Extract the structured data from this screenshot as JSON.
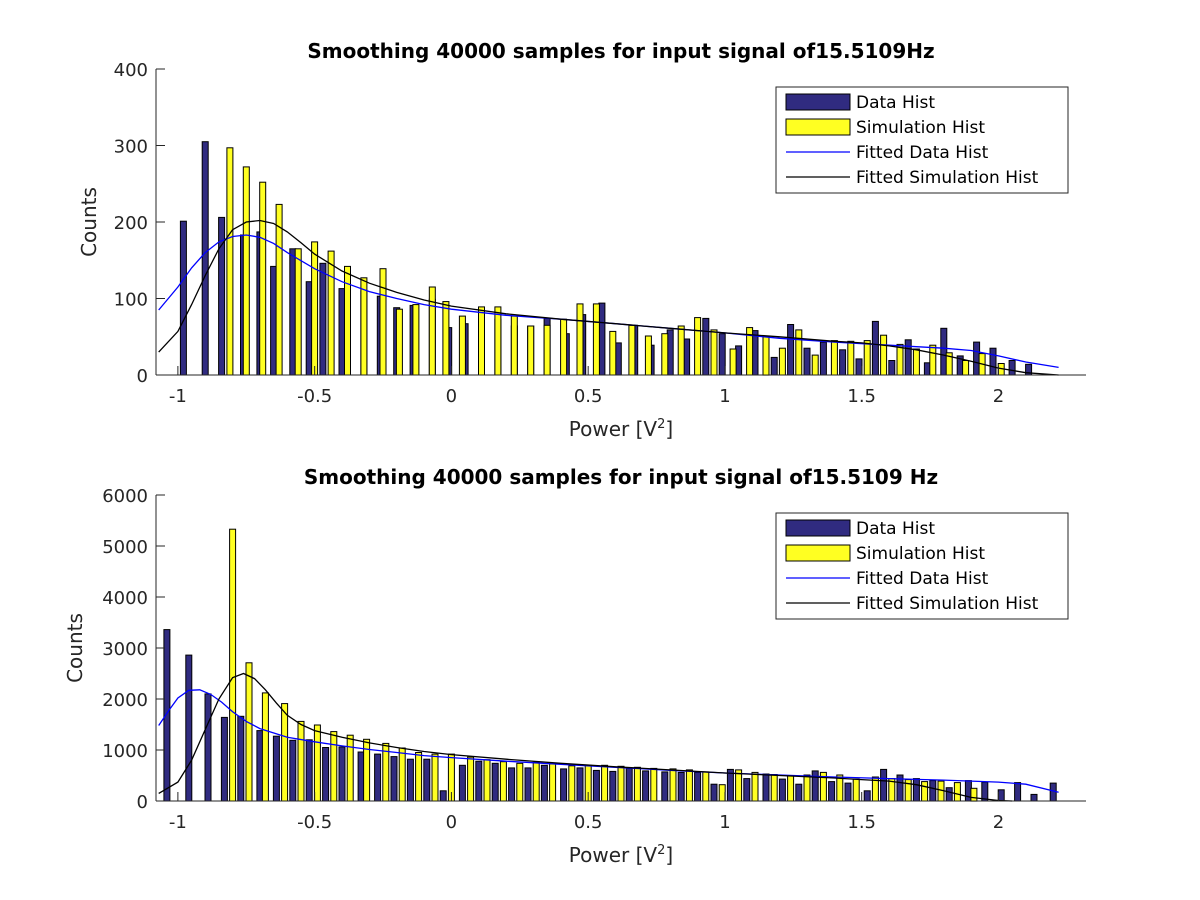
{
  "colors": {
    "data_bar": "#302b80",
    "sim_bar": "#ffff22",
    "bar_edge": "#000000",
    "fit_data": "#0000ff",
    "fit_sim": "#000000"
  },
  "chart_data": [
    {
      "type": "bar",
      "title": "Smoothing 40000 samples for input signal of15.5109Hz",
      "xlabel": "Power [V",
      "xlabel_sup": "2",
      "xlabel_end": "]",
      "ylabel": "Counts",
      "xlim": [
        -1.08,
        2.32
      ],
      "ylim": [
        0,
        400
      ],
      "xticks": [
        -1,
        -0.5,
        0,
        0.5,
        1,
        1.5,
        2
      ],
      "xtick_labels": [
        "-1",
        "-0.5",
        "0",
        "0.5",
        "1",
        "1.5",
        "2"
      ],
      "yticks": [
        0,
        100,
        200,
        300,
        400
      ],
      "ytick_labels": [
        "0",
        "100",
        "200",
        "300",
        "400"
      ],
      "legend": {
        "position": "top-right",
        "entries": [
          "Data Hist",
          "Simulation Hist",
          "Fitted Data Hist",
          "Fitted Simulation Hist"
        ]
      },
      "series": [
        {
          "name": "Data Hist",
          "x": [
            -0.98,
            -0.9,
            -0.84,
            -0.76,
            -0.7,
            -0.65,
            -0.58,
            -0.52,
            -0.47,
            -0.4,
            -0.32,
            -0.26,
            -0.2,
            -0.14,
            -0.07,
            -0.01,
            0.05,
            0.11,
            0.17,
            0.23,
            0.29,
            0.35,
            0.42,
            0.48,
            0.55,
            0.61,
            0.67,
            0.73,
            0.8,
            0.86,
            0.93,
            0.99,
            1.05,
            1.11,
            1.18,
            1.24,
            1.3,
            1.36,
            1.43,
            1.49,
            1.55,
            1.61,
            1.67,
            1.74,
            1.8,
            1.86,
            1.92,
            1.98,
            2.05,
            2.11
          ],
          "values": [
            201,
            305,
            206,
            183,
            187,
            142,
            165,
            122,
            146,
            113,
            110,
            103,
            88,
            91,
            99,
            62,
            67,
            70,
            73,
            64,
            64,
            74,
            54,
            79,
            94,
            42,
            65,
            39,
            59,
            47,
            74,
            54,
            38,
            58,
            23,
            66,
            35,
            43,
            33,
            21,
            70,
            19,
            46,
            16,
            61,
            25,
            43,
            35,
            19,
            14
          ]
        },
        {
          "name": "Simulation Hist",
          "x": [
            -0.81,
            -0.75,
            -0.69,
            -0.63,
            -0.56,
            -0.5,
            -0.44,
            -0.38,
            -0.32,
            -0.25,
            -0.19,
            -0.13,
            -0.07,
            -0.02,
            0.04,
            0.11,
            0.17,
            0.23,
            0.29,
            0.35,
            0.41,
            0.47,
            0.53,
            0.59,
            0.66,
            0.72,
            0.78,
            0.84,
            0.9,
            0.96,
            1.03,
            1.09,
            1.15,
            1.21,
            1.27,
            1.33,
            1.4,
            1.46,
            1.52,
            1.58,
            1.64,
            1.7,
            1.76,
            1.82,
            1.88,
            1.94,
            2.01
          ],
          "values": [
            297,
            272,
            252,
            223,
            165,
            174,
            162,
            142,
            127,
            139,
            86,
            92,
            115,
            96,
            77,
            89,
            89,
            77,
            64,
            65,
            73,
            93,
            93,
            57,
            65,
            51,
            54,
            64,
            75,
            59,
            34,
            62,
            50,
            35,
            59,
            26,
            45,
            44,
            45,
            52,
            40,
            34,
            39,
            29,
            19,
            28,
            15
          ]
        },
        {
          "name": "Fitted Data Hist",
          "type": "line",
          "x": [
            -1.07,
            -1.0,
            -0.95,
            -0.9,
            -0.85,
            -0.8,
            -0.75,
            -0.7,
            -0.65,
            -0.6,
            -0.5,
            -0.4,
            -0.3,
            -0.2,
            -0.1,
            0,
            0.2,
            0.4,
            0.6,
            0.8,
            1.0,
            1.2,
            1.4,
            1.6,
            1.7,
            1.8,
            1.9,
            2.0,
            2.1,
            2.22
          ],
          "values": [
            85,
            115,
            140,
            160,
            174,
            181,
            183,
            180,
            172,
            160,
            139,
            122,
            109,
            100,
            92,
            86,
            78,
            73,
            67,
            61,
            55,
            48,
            43,
            39,
            37,
            35,
            32,
            25,
            17,
            10
          ]
        },
        {
          "name": "Fitted Simulation Hist",
          "type": "line",
          "x": [
            -1.07,
            -1.0,
            -0.95,
            -0.9,
            -0.85,
            -0.8,
            -0.75,
            -0.7,
            -0.65,
            -0.6,
            -0.55,
            -0.5,
            -0.4,
            -0.3,
            -0.2,
            -0.1,
            0,
            0.2,
            0.4,
            0.6,
            0.8,
            1.0,
            1.2,
            1.4,
            1.5,
            1.6,
            1.7,
            1.8,
            1.9,
            2.0,
            2.1,
            2.22
          ],
          "values": [
            30,
            57,
            92,
            130,
            165,
            190,
            200,
            202,
            198,
            187,
            173,
            158,
            136,
            120,
            108,
            98,
            90,
            80,
            73,
            67,
            61,
            55,
            50,
            44,
            42,
            38,
            33,
            26,
            18,
            9,
            3,
            0
          ]
        }
      ]
    },
    {
      "type": "bar",
      "title": "Smoothing 40000 samples for input signal of15.5109 Hz",
      "xlabel": "Power [V",
      "xlabel_sup": "2",
      "xlabel_end": "]",
      "ylabel": "Counts",
      "xlim": [
        -1.08,
        2.32
      ],
      "ylim": [
        0,
        6000
      ],
      "xticks": [
        -1,
        -0.5,
        0,
        0.5,
        1,
        1.5,
        2
      ],
      "xtick_labels": [
        "-1",
        "-0.5",
        "0",
        "0.5",
        "1",
        "1.5",
        "2"
      ],
      "yticks": [
        0,
        1000,
        2000,
        3000,
        4000,
        5000,
        6000
      ],
      "ytick_labels": [
        "0",
        "1000",
        "2000",
        "3000",
        "4000",
        "5000",
        "6000"
      ],
      "legend": {
        "position": "top-right",
        "entries": [
          "Data Hist",
          "Simulation Hist",
          "Fitted Data Hist",
          "Fitted Simulation Hist"
        ]
      },
      "series": [
        {
          "name": "Data Hist",
          "x": [
            -1.04,
            -0.96,
            -0.89,
            -0.83,
            -0.77,
            -0.7,
            -0.64,
            -0.58,
            -0.52,
            -0.46,
            -0.4,
            -0.33,
            -0.27,
            -0.21,
            -0.15,
            -0.09,
            -0.03,
            0.04,
            0.1,
            0.16,
            0.22,
            0.28,
            0.34,
            0.41,
            0.47,
            0.53,
            0.59,
            0.65,
            0.71,
            0.78,
            0.84,
            0.9,
            0.96,
            1.02,
            1.08,
            1.15,
            1.21,
            1.27,
            1.33,
            1.39,
            1.45,
            1.52,
            1.58,
            1.64,
            1.7,
            1.76,
            1.82,
            1.89,
            1.95,
            2.01,
            2.07,
            2.13,
            2.2
          ],
          "values": [
            3360,
            2860,
            2100,
            1640,
            1660,
            1380,
            1270,
            1190,
            1200,
            1050,
            1060,
            960,
            920,
            870,
            820,
            820,
            200,
            700,
            780,
            740,
            650,
            650,
            700,
            630,
            650,
            600,
            580,
            640,
            590,
            570,
            560,
            560,
            330,
            620,
            440,
            530,
            430,
            330,
            590,
            380,
            350,
            200,
            620,
            510,
            440,
            400,
            260,
            400,
            370,
            220,
            360,
            130,
            350
          ]
        },
        {
          "name": "Simulation Hist",
          "x": [
            -0.8,
            -0.74,
            -0.68,
            -0.61,
            -0.55,
            -0.49,
            -0.43,
            -0.37,
            -0.31,
            -0.24,
            -0.18,
            -0.12,
            -0.06,
            0.0,
            0.07,
            0.13,
            0.19,
            0.25,
            0.31,
            0.37,
            0.44,
            0.5,
            0.56,
            0.62,
            0.68,
            0.74,
            0.81,
            0.87,
            0.93,
            0.99,
            1.05,
            1.11,
            1.18,
            1.24,
            1.3,
            1.36,
            1.42,
            1.48,
            1.55,
            1.61,
            1.67,
            1.73,
            1.79,
            1.85,
            1.91
          ],
          "values": [
            5330,
            2710,
            2120,
            1910,
            1560,
            1490,
            1360,
            1290,
            1210,
            1130,
            1040,
            950,
            920,
            920,
            860,
            810,
            770,
            740,
            760,
            730,
            690,
            700,
            700,
            680,
            660,
            640,
            630,
            610,
            570,
            320,
            610,
            560,
            520,
            500,
            510,
            560,
            510,
            430,
            470,
            440,
            420,
            380,
            390,
            360,
            250
          ]
        },
        {
          "name": "Fitted Data Hist",
          "type": "line",
          "x": [
            -1.07,
            -1.03,
            -1.0,
            -0.96,
            -0.92,
            -0.88,
            -0.84,
            -0.8,
            -0.75,
            -0.7,
            -0.6,
            -0.5,
            -0.4,
            -0.3,
            -0.2,
            -0.1,
            0,
            0.2,
            0.4,
            0.6,
            0.8,
            1.0,
            1.2,
            1.4,
            1.6,
            1.8,
            2.0,
            2.1,
            2.22
          ],
          "values": [
            1480,
            1800,
            2020,
            2170,
            2180,
            2090,
            1940,
            1750,
            1560,
            1420,
            1250,
            1160,
            1080,
            1010,
            950,
            890,
            850,
            780,
            720,
            660,
            600,
            550,
            510,
            470,
            440,
            410,
            370,
            330,
            170
          ]
        },
        {
          "name": "Fitted Simulation Hist",
          "type": "line",
          "x": [
            -1.07,
            -1.0,
            -0.95,
            -0.9,
            -0.85,
            -0.8,
            -0.76,
            -0.72,
            -0.68,
            -0.64,
            -0.6,
            -0.55,
            -0.5,
            -0.4,
            -0.3,
            -0.2,
            -0.1,
            0,
            0.2,
            0.4,
            0.6,
            0.8,
            1.0,
            1.2,
            1.4,
            1.5,
            1.6,
            1.7,
            1.8,
            1.9,
            2.0,
            2.05
          ],
          "values": [
            150,
            370,
            800,
            1400,
            2000,
            2420,
            2500,
            2400,
            2180,
            1920,
            1680,
            1500,
            1380,
            1250,
            1140,
            1050,
            970,
            910,
            820,
            740,
            670,
            610,
            550,
            500,
            450,
            420,
            390,
            320,
            200,
            70,
            10,
            0
          ]
        }
      ]
    }
  ]
}
